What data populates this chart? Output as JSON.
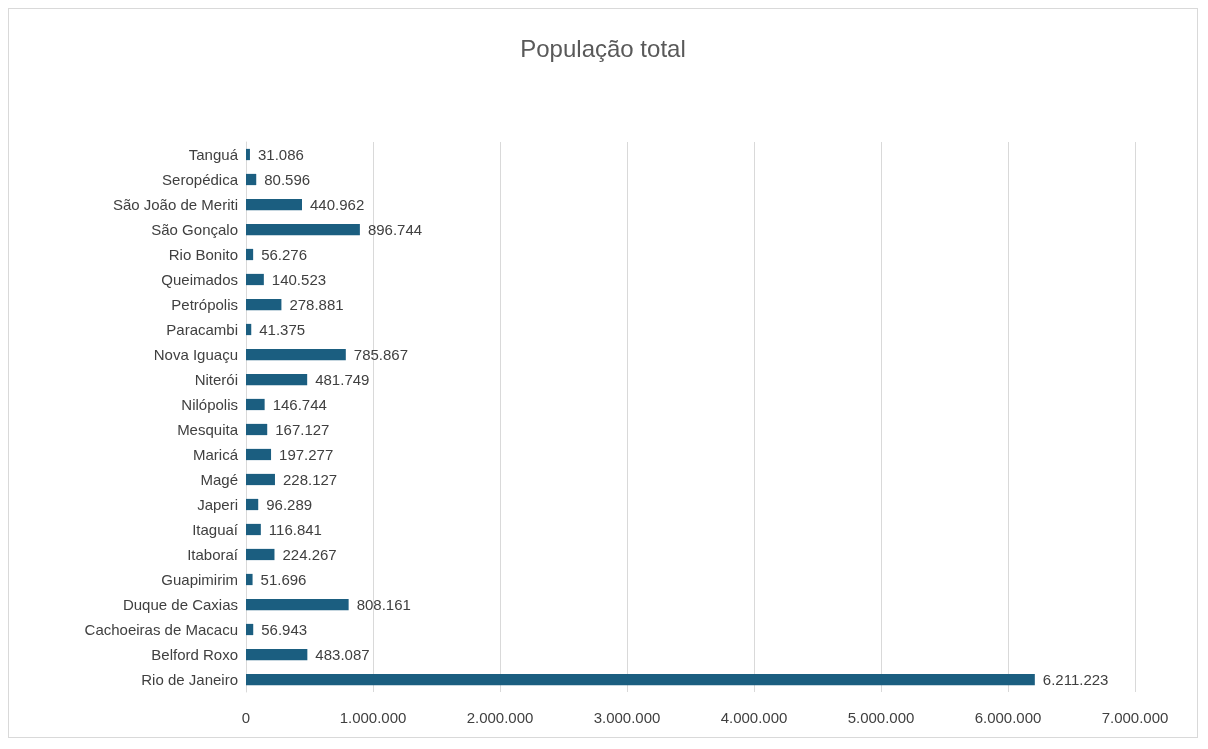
{
  "chart_data": {
    "type": "bar",
    "title": "População total",
    "orientation": "horizontal",
    "categories": [
      "Tanguá",
      "Seropédica",
      "São João de Meriti",
      "São Gonçalo",
      "Rio Bonito",
      "Queimados",
      "Petrópolis",
      "Paracambi",
      "Nova Iguaçu",
      "Niterói",
      "Nilópolis",
      "Mesquita",
      "Maricá",
      "Magé",
      "Japeri",
      "Itaguaí",
      "Itaboraí",
      "Guapimirim",
      "Duque de Caxias",
      "Cachoeiras de Macacu",
      "Belford Roxo",
      "Rio de Janeiro"
    ],
    "values": [
      31086,
      80596,
      440962,
      896744,
      56276,
      140523,
      278881,
      41375,
      785867,
      481749,
      146744,
      167127,
      197277,
      228127,
      96289,
      116841,
      224267,
      51696,
      808161,
      56943,
      483087,
      6211223
    ],
    "value_labels": [
      "31.086",
      "80.596",
      "440.962",
      "896.744",
      "56.276",
      "140.523",
      "278.881",
      "41.375",
      "785.867",
      "481.749",
      "146.744",
      "167.127",
      "197.277",
      "228.127",
      "96.289",
      "116.841",
      "224.267",
      "51.696",
      "808.161",
      "56.943",
      "483.087",
      "6.211.223"
    ],
    "color": "#1b5e80",
    "xlim": [
      0,
      7000000
    ],
    "xticks": [
      0,
      {
        "value": 1000000,
        "label": "1.000.000"
      },
      {
        "value": 2000000,
        "label": "2.000.000"
      },
      {
        "value": 3000000,
        "label": "3.000.000"
      },
      {
        "value": 4000000,
        "label": "4.000.000"
      },
      {
        "value": 5000000,
        "label": "5.000.000"
      },
      {
        "value": 6000000,
        "label": "6.000.000"
      },
      {
        "value": 7000000,
        "label": "7.000.000"
      }
    ],
    "grid": "x"
  }
}
